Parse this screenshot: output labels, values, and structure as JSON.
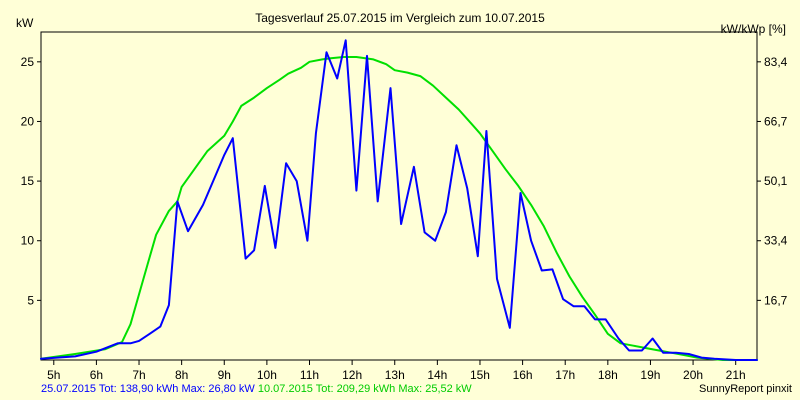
{
  "chart_data": {
    "type": "line",
    "title": "Tagesverlauf 25.07.2015 im Vergleich zum 10.07.2015",
    "ylabel_left": "kW",
    "ylabel_right": "kW/kWp [%]",
    "x_tick_labels": [
      "5h",
      "6h",
      "7h",
      "8h",
      "9h",
      "10h",
      "11h",
      "12h",
      "13h",
      "14h",
      "15h",
      "16h",
      "17h",
      "18h",
      "19h",
      "20h",
      "21h"
    ],
    "y_ticks_left": [
      5,
      10,
      15,
      20,
      25
    ],
    "y_ticks_right": [
      "16,7",
      "33,4",
      "50,1",
      "66,7",
      "83,4"
    ],
    "xlim": [
      4.7,
      21.5
    ],
    "ylim": [
      0,
      27.5
    ],
    "grid": false,
    "series": [
      {
        "name": "25.07.2015",
        "color": "#0000ff",
        "x": [
          4.7,
          5.5,
          6.0,
          6.5,
          6.8,
          7.0,
          7.25,
          7.5,
          7.7,
          7.9,
          8.15,
          8.5,
          8.8,
          9.0,
          9.2,
          9.5,
          9.7,
          9.95,
          10.2,
          10.45,
          10.7,
          10.95,
          11.15,
          11.4,
          11.65,
          11.85,
          12.1,
          12.35,
          12.6,
          12.9,
          13.15,
          13.45,
          13.7,
          13.95,
          14.2,
          14.45,
          14.7,
          14.95,
          15.15,
          15.4,
          15.7,
          15.95,
          16.2,
          16.45,
          16.7,
          16.95,
          17.2,
          17.45,
          17.7,
          17.95,
          18.25,
          18.5,
          18.8,
          19.05,
          19.3,
          19.6,
          19.9,
          20.2,
          20.5,
          21.0,
          21.5
        ],
        "y": [
          0.1,
          0.3,
          0.7,
          1.4,
          1.4,
          1.6,
          2.2,
          2.8,
          4.6,
          13.3,
          10.8,
          13.0,
          15.5,
          17.2,
          18.6,
          8.5,
          9.2,
          14.6,
          9.4,
          16.5,
          15.0,
          10.0,
          19.0,
          25.8,
          23.6,
          26.8,
          14.2,
          25.5,
          13.3,
          22.8,
          11.4,
          16.2,
          10.7,
          10.0,
          12.4,
          18.0,
          14.4,
          8.7,
          19.2,
          6.8,
          2.7,
          14.0,
          10.0,
          7.5,
          7.6,
          5.1,
          4.5,
          4.5,
          3.4,
          3.4,
          1.8,
          0.8,
          0.8,
          1.8,
          0.6,
          0.6,
          0.5,
          0.2,
          0.1,
          0.0,
          0.0
        ]
      },
      {
        "name": "10.07.2015",
        "color": "#00e000",
        "x": [
          4.7,
          5.5,
          6.2,
          6.6,
          6.8,
          7.0,
          7.2,
          7.4,
          7.7,
          7.9,
          8.0,
          8.3,
          8.6,
          9.0,
          9.2,
          9.4,
          9.7,
          10.0,
          10.3,
          10.5,
          10.8,
          11.0,
          11.3,
          11.5,
          11.8,
          12.1,
          12.5,
          12.8,
          13.0,
          13.3,
          13.6,
          13.9,
          14.2,
          14.5,
          14.8,
          15.0,
          15.3,
          15.6,
          15.9,
          16.2,
          16.5,
          16.8,
          17.1,
          17.4,
          17.7,
          18.0,
          18.3,
          18.6,
          18.9,
          19.2,
          19.5,
          19.8,
          20.1,
          20.4,
          20.7,
          21.0,
          21.5
        ],
        "y": [
          0.1,
          0.5,
          0.9,
          1.5,
          3.0,
          5.5,
          8.0,
          10.5,
          12.5,
          13.3,
          14.5,
          16.0,
          17.5,
          18.8,
          20.0,
          21.3,
          22.0,
          22.8,
          23.5,
          24.0,
          24.5,
          25.0,
          25.2,
          25.3,
          25.4,
          25.4,
          25.2,
          24.8,
          24.3,
          24.1,
          23.8,
          23.0,
          22.0,
          21.0,
          19.8,
          19.0,
          17.5,
          16.0,
          14.6,
          13.0,
          11.2,
          9.0,
          7.0,
          5.3,
          3.8,
          2.2,
          1.4,
          1.2,
          1.0,
          0.8,
          0.6,
          0.4,
          0.2,
          0.1,
          0.0,
          0.0,
          0.0
        ]
      }
    ]
  },
  "footer": {
    "series1_text": "25.07.2015 Tot: 138,90 kWh Max: 26,80 kW",
    "series2_text": "10.07.2015 Tot: 209,29 kWh Max: 25,52 kW",
    "brand": "SunnyReport pinxit"
  }
}
